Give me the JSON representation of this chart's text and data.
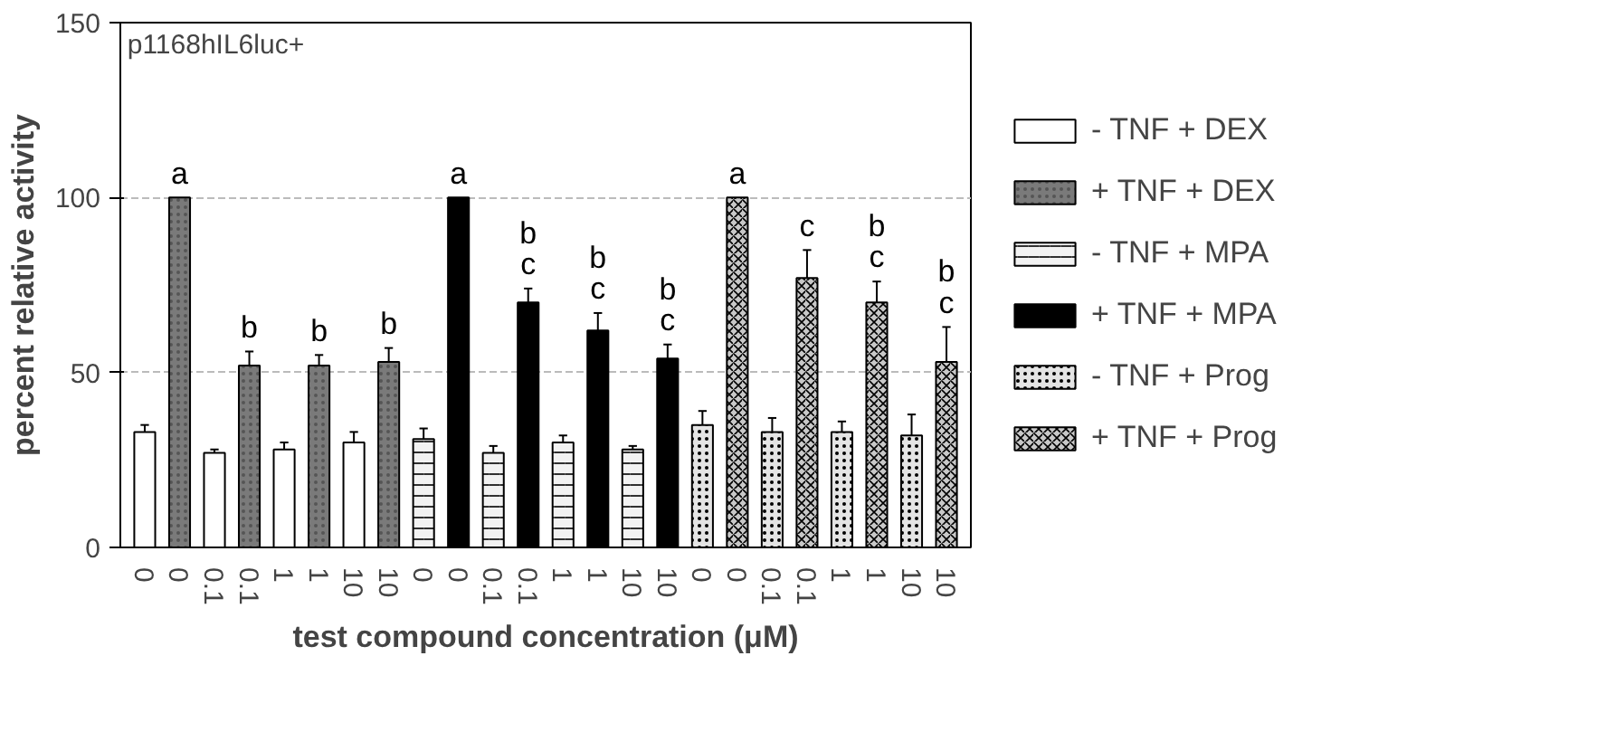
{
  "chart_data": {
    "type": "bar",
    "ylabel": "percent relative activity",
    "xlabel": "test compound concentration (μM)",
    "annotations": [
      "p1168hIL6luc+"
    ],
    "categories": [
      "0",
      "0",
      "0.1",
      "0.1",
      "1",
      "1",
      "10",
      "10",
      "0",
      "0",
      "0.1",
      "0.1",
      "1",
      "1",
      "10",
      "10",
      "0",
      "0",
      "0.1",
      "0.1",
      "1",
      "1",
      "10",
      "10"
    ],
    "ylim": [
      0,
      150
    ],
    "yticks": [
      0,
      50,
      100,
      150
    ],
    "grid": "y",
    "legend": "right",
    "series": [
      {
        "name": "- TNF + DEX",
        "color": "#ffffff",
        "values": [
          33,
          null,
          27,
          null,
          28,
          null,
          30,
          null,
          null,
          null,
          null,
          null,
          null,
          null,
          null,
          null,
          null,
          null,
          null,
          null,
          null,
          null,
          null,
          null
        ],
        "errors": [
          2,
          null,
          1,
          null,
          2,
          null,
          3,
          null,
          null,
          null,
          null,
          null,
          null,
          null,
          null,
          null,
          null,
          null,
          null,
          null,
          null,
          null,
          null,
          null
        ]
      },
      {
        "name": "+ TNF + DEX",
        "color": "#7a7a7a",
        "values": [
          null,
          100,
          null,
          52,
          null,
          52,
          null,
          53,
          null,
          null,
          null,
          null,
          null,
          null,
          null,
          null,
          null,
          null,
          null,
          null,
          null,
          null,
          null,
          null
        ],
        "errors": [
          null,
          0,
          null,
          4,
          null,
          3,
          null,
          4,
          null,
          null,
          null,
          null,
          null,
          null,
          null,
          null,
          null,
          null,
          null,
          null,
          null,
          null,
          null,
          null
        ],
        "value_labels": [
          null,
          "a",
          null,
          "b",
          null,
          "b",
          null,
          "b",
          null,
          null,
          null,
          null,
          null,
          null,
          null,
          null,
          null,
          null,
          null,
          null,
          null,
          null,
          null,
          null
        ]
      },
      {
        "name": "- TNF + MPA",
        "color": "#f2f2f2",
        "values": [
          null,
          null,
          null,
          null,
          null,
          null,
          null,
          null,
          31,
          null,
          27,
          null,
          30,
          null,
          28,
          null,
          null,
          null,
          null,
          null,
          null,
          null,
          null,
          null
        ],
        "errors": [
          null,
          null,
          null,
          null,
          null,
          null,
          null,
          null,
          3,
          null,
          2,
          null,
          2,
          null,
          1,
          null,
          null,
          null,
          null,
          null,
          null,
          null,
          null,
          null
        ]
      },
      {
        "name": "+ TNF + MPA",
        "color": "#000000",
        "values": [
          null,
          null,
          null,
          null,
          null,
          null,
          null,
          null,
          null,
          100,
          null,
          70,
          null,
          62,
          null,
          54,
          null,
          null,
          null,
          null,
          null,
          null,
          null,
          null
        ],
        "errors": [
          null,
          null,
          null,
          null,
          null,
          null,
          null,
          null,
          null,
          0,
          null,
          4,
          null,
          5,
          null,
          4,
          null,
          null,
          null,
          null,
          null,
          null,
          null,
          null
        ],
        "value_labels": [
          null,
          null,
          null,
          null,
          null,
          null,
          null,
          null,
          null,
          "a",
          null,
          "b\nc",
          null,
          "b\nc",
          null,
          "b\nc",
          null,
          null,
          null,
          null,
          null,
          null,
          null,
          null
        ]
      },
      {
        "name": "- TNF + Prog",
        "color": "#e4e4e4",
        "values": [
          null,
          null,
          null,
          null,
          null,
          null,
          null,
          null,
          null,
          null,
          null,
          null,
          null,
          null,
          null,
          null,
          35,
          null,
          33,
          null,
          33,
          null,
          32,
          null
        ],
        "errors": [
          null,
          null,
          null,
          null,
          null,
          null,
          null,
          null,
          null,
          null,
          null,
          null,
          null,
          null,
          null,
          null,
          4,
          null,
          4,
          null,
          3,
          null,
          6,
          null
        ]
      },
      {
        "name": "+ TNF + Prog",
        "color": "#c8c8c8",
        "values": [
          null,
          null,
          null,
          null,
          null,
          null,
          null,
          null,
          null,
          null,
          null,
          null,
          null,
          null,
          null,
          null,
          null,
          100,
          null,
          77,
          null,
          70,
          null,
          53
        ],
        "errors": [
          null,
          null,
          null,
          null,
          null,
          null,
          null,
          null,
          null,
          null,
          null,
          null,
          null,
          null,
          null,
          null,
          null,
          0,
          null,
          8,
          null,
          6,
          null,
          10
        ],
        "value_labels": [
          null,
          null,
          null,
          null,
          null,
          null,
          null,
          null,
          null,
          null,
          null,
          null,
          null,
          null,
          null,
          null,
          null,
          "a",
          null,
          "c",
          null,
          "b\nc",
          null,
          "b\nc"
        ]
      }
    ]
  }
}
